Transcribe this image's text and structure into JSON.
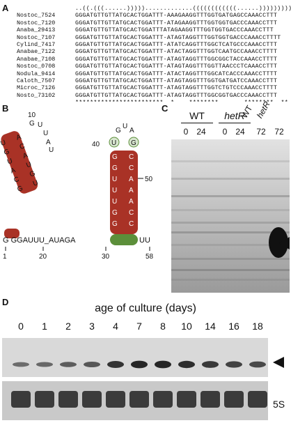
{
  "panel_labels": {
    "a": "A",
    "b": "B",
    "c": "C",
    "d": "D"
  },
  "alignment": {
    "structure": "..((.(((......))))).............((((((((((((......)))))))))))",
    "rows": [
      {
        "name": "Nostoc_7524",
        "seq": "GGGATGTTGTTATGCACTGGATTT-AAAGAAGGTTTGGTGATGAGCCAAACCTTT"
      },
      {
        "name": "Nostoc_7120",
        "seq": "GGGATGTTGTTATGCACTGGATTT-ATAGAAGGTTTGGTGGTGACCCAAACCTTT"
      },
      {
        "name": "Anaba_29413",
        "seq": "GGGATGTTGTTATGCACTGGATTTATAGAAGGTTTGGTGGTGACCCAAACCTTT"
      },
      {
        "name": "Nostoc_7107",
        "seq": "GGGATGTTGTTATGCACTGGATTT-ATAGTAGGTTTGGTGGTGACCCAAACCTTTT"
      },
      {
        "name": "Cylind_7417",
        "seq": "GGGATGTTGTTATGCACTGGATTT-ATATCAGGTTTGGCTCATGCCCAAACCTTT"
      },
      {
        "name": "Anabae_7122",
        "seq": "GGGATGTTGTTATGCACTGGATTT-ATACTAGGTTTGGTCAATGCCAAACCTTTT"
      },
      {
        "name": "Anabae_7108",
        "seq": "GGGATGTTGTTATGCACTGGATTT-ATAGTAGGTTTGGCGGCTACCAAACCTTTT"
      },
      {
        "name": "Nostoc_0708",
        "seq": "GGGATGTTGTTATGCACTGGATTT-ATAGTAGGTTTGGTTAACCCTCAAACCTTT"
      },
      {
        "name": "Nodula_9414",
        "seq": "GGGATGTTGTTATGCACTGGATTT-ATACTAGGTTTGGCATCACCCAAACCTTTT"
      },
      {
        "name": "Caloth_7507",
        "seq": "GGGATGTTGTTATGCACTGGATTT-ATAGTAGGTTTGGTGATGATCCAAACCTTT"
      },
      {
        "name": "Microc_7126",
        "seq": "GGGATGTTGTTATGCACTGGATTT-ATAGTAGGTTTGGTCTGTCCCAAACCTTTT"
      },
      {
        "name": "Nosto_73102",
        "seq": "GGGATGTTGTTATGCACTGGATTT-ATAGTAGGTTTGGCGGTGACCCAAACCTTT"
      }
    ],
    "conservation": "************************  *    ********       ********  **"
  },
  "structure_b": {
    "pos_labels": {
      "p1": "1",
      "p10": "10",
      "p20": "20",
      "p30": "30",
      "p40": "40",
      "p50": "50",
      "p58": "58"
    },
    "backbone": "G  GGAUUU_AUAGA",
    "tail": "UU"
  },
  "panel_c": {
    "groups": [
      {
        "label": "WT"
      },
      {
        "label": "hetR"
      }
    ],
    "lane_labels": [
      "0",
      "24",
      "0",
      "24",
      "72",
      "72"
    ],
    "top_lane_labels": [
      "WT",
      "hetR"
    ]
  },
  "panel_d": {
    "title": "age of culture (days)",
    "days": [
      "0",
      "1",
      "2",
      "3",
      "4",
      "7",
      "8",
      "10",
      "14",
      "16",
      "18"
    ],
    "band_label": "5S",
    "signal_relative": [
      0.35,
      0.38,
      0.45,
      0.5,
      0.75,
      0.85,
      0.85,
      0.8,
      0.72,
      0.65,
      0.6
    ]
  },
  "colors": {
    "red_rna": "#a93226",
    "green_rna": "#5c8f3a",
    "seq_red": "#b30000",
    "seq_blue": "#1f3fa8",
    "seq_green": "#2d7d2d"
  }
}
